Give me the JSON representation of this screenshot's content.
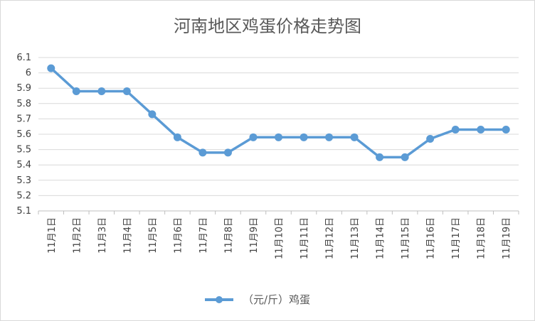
{
  "chart_data": {
    "type": "line",
    "title": "河南地区鸡蛋价格走势图",
    "xlabel": "",
    "ylabel": "",
    "ylim": [
      5.1,
      6.1
    ],
    "ytick_step": 0.1,
    "grid": true,
    "legend_position": "bottom",
    "categories": [
      "11月1日",
      "11月2日",
      "11月3日",
      "11月4日",
      "11月5日",
      "11月6日",
      "11月7日",
      "11月8日",
      "11月9日",
      "11月10日",
      "11月11日",
      "11月12日",
      "11月13日",
      "11月14日",
      "11月15日",
      "11月16日",
      "11月17日",
      "11月18日",
      "11月19日"
    ],
    "series": [
      {
        "name": "（元/斤）鸡蛋",
        "color": "#5b9bd5",
        "values": [
          6.03,
          5.88,
          5.88,
          5.88,
          5.73,
          5.58,
          5.48,
          5.48,
          5.58,
          5.58,
          5.58,
          5.58,
          5.58,
          5.45,
          5.45,
          5.57,
          5.63,
          5.63,
          5.63
        ]
      }
    ]
  }
}
